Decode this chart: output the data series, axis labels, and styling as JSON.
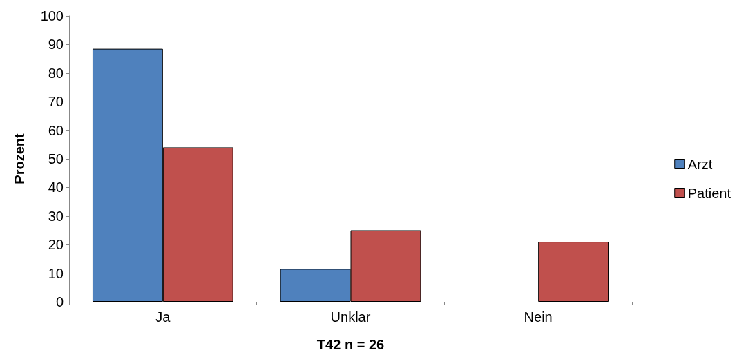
{
  "chart_data": {
    "type": "bar",
    "xlabel": "T42 n = 26",
    "ylabel": "Prozent",
    "categories": [
      "Ja",
      "Unklar",
      "Nein"
    ],
    "series": [
      {
        "name": "Arzt",
        "color": "#4f81bd",
        "values": [
          88.5,
          11.5,
          0
        ]
      },
      {
        "name": "Patient",
        "color": "#c0504d",
        "values": [
          54,
          25,
          21
        ]
      }
    ],
    "ylim": [
      0,
      100
    ],
    "yticks": [
      0,
      10,
      20,
      30,
      40,
      50,
      60,
      70,
      80,
      90,
      100
    ],
    "grid": false,
    "legend": "right"
  }
}
